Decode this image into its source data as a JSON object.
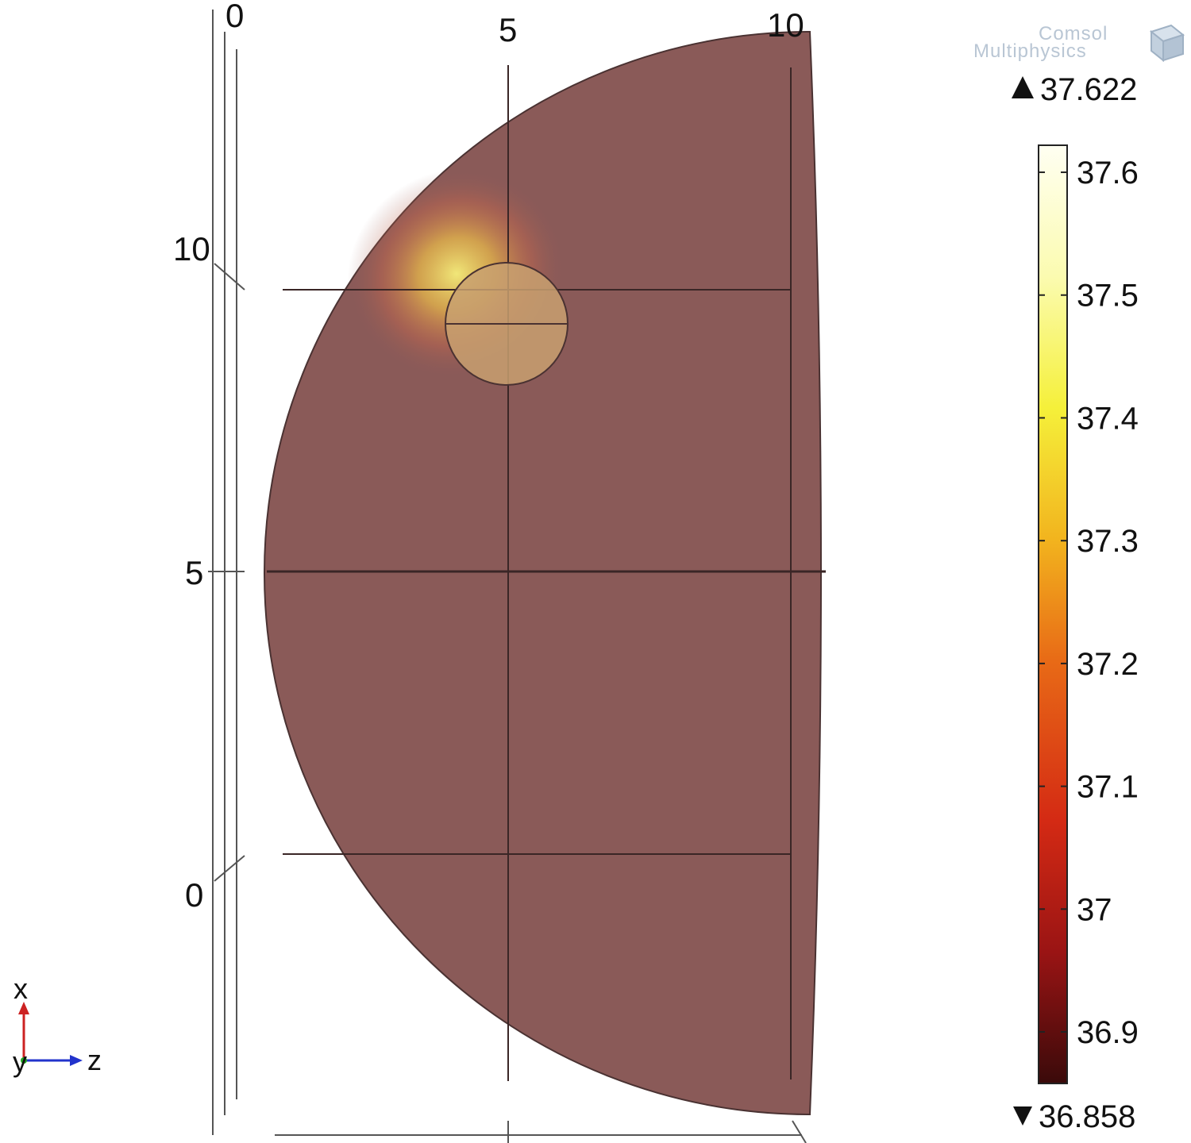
{
  "watermark": {
    "line1": "Comsol",
    "line2": "Multiphysics",
    "icon": "comsol-cube-icon"
  },
  "axes": {
    "top_ticks": [
      "0",
      "5",
      "10"
    ],
    "left_ticks": [
      "10",
      "5",
      "0"
    ]
  },
  "triad": {
    "x_label": "x",
    "y_label": "y",
    "z_label": "z",
    "x_color": "#cc2222",
    "z_color": "#2233cc",
    "y_color": "#22aa22"
  },
  "colorbar": {
    "max_label": "37.622",
    "min_label": "36.858",
    "max_value": 37.622,
    "min_value": 36.858,
    "ticks": [
      {
        "value": 37.6,
        "label": "37.6"
      },
      {
        "value": 37.5,
        "label": "37.5"
      },
      {
        "value": 37.4,
        "label": "37.4"
      },
      {
        "value": 37.3,
        "label": "37.3"
      },
      {
        "value": 37.2,
        "label": "37.2"
      },
      {
        "value": 37.1,
        "label": "37.1"
      },
      {
        "value": 37.0,
        "label": "37"
      },
      {
        "value": 36.9,
        "label": "36.9"
      }
    ],
    "colormap": "heat",
    "colors": [
      "#3a0a0a",
      "#9a1414",
      "#d42a14",
      "#e86a16",
      "#f2b41e",
      "#f5f03a",
      "#fbfbb0",
      "#fffff2"
    ]
  },
  "model": {
    "body_color": "#8a5a58",
    "hotspot_color": "#f5e86a"
  }
}
